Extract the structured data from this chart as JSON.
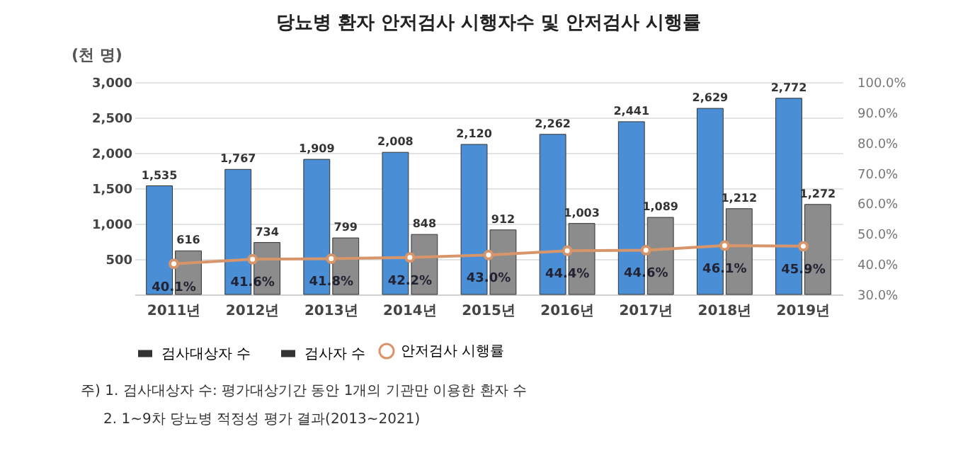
{
  "chart_data": {
    "type": "bar",
    "title": "당뇨병 환자 안저검사 시행자수 및 안저검사 시행률",
    "ylabel": "(천 명)",
    "categories": [
      "2011년",
      "2012년",
      "2013년",
      "2014년",
      "2015년",
      "2016년",
      "2017년",
      "2018년",
      "2019년"
    ],
    "series": [
      {
        "name": "검사대상자 수",
        "color": "#4a8fd6",
        "values": [
          1535,
          1767,
          1909,
          2008,
          2120,
          2262,
          2441,
          2629,
          2772
        ],
        "value_labels": [
          "1,535",
          "1,767",
          "1,909",
          "2,008",
          "2,120",
          "2,262",
          "2,441",
          "2,629",
          "2,772"
        ]
      },
      {
        "name": "검사자 수",
        "color": "#8c8c8c",
        "values": [
          616,
          734,
          799,
          848,
          912,
          1003,
          1089,
          1212,
          1272
        ],
        "value_labels": [
          "616",
          "734",
          "799",
          "848",
          "912",
          "1,003",
          "1,089",
          "1,212",
          "1,272"
        ]
      },
      {
        "name": "안저검사 시행률",
        "type": "line",
        "axis": "y2",
        "color": "#d9956a",
        "marker": "circle",
        "values": [
          40.1,
          41.6,
          41.8,
          42.2,
          43.0,
          44.4,
          44.6,
          46.1,
          45.9
        ],
        "value_labels": [
          "40.1%",
          "41.6%",
          "41.8%",
          "42.2%",
          "43.0%",
          "44.4%",
          "44.6%",
          "46.1%",
          "45.9%"
        ]
      }
    ],
    "ylim": [
      0,
      3000
    ],
    "yticks": [
      {
        "value": 500,
        "label": "500"
      },
      {
        "value": 1000,
        "label": "1,000"
      },
      {
        "value": 1500,
        "label": "1,500"
      },
      {
        "value": 2000,
        "label": "2,000"
      },
      {
        "value": 2500,
        "label": "2,500"
      },
      {
        "value": 3000,
        "label": "3,000"
      }
    ],
    "y2lim": [
      30,
      100
    ],
    "y2ticks": [
      {
        "value": 30,
        "label": "30.0%"
      },
      {
        "value": 40,
        "label": "40.0%"
      },
      {
        "value": 50,
        "label": "50.0%"
      },
      {
        "value": 60,
        "label": "60.0%"
      },
      {
        "value": 70,
        "label": "70.0%"
      },
      {
        "value": 80,
        "label": "80.0%"
      },
      {
        "value": 90,
        "label": "90.0%"
      },
      {
        "value": 100,
        "label": "100.0%"
      }
    ],
    "grid": "y",
    "legend": "bottom",
    "annotations": [
      "주) 1. 검사대상자 수: 평가대상기간 동안 1개의 기관만 이용한 환자 수",
      "2. 1~9차 당뇨병 적정성 평가 결과(2013~2021)"
    ]
  }
}
